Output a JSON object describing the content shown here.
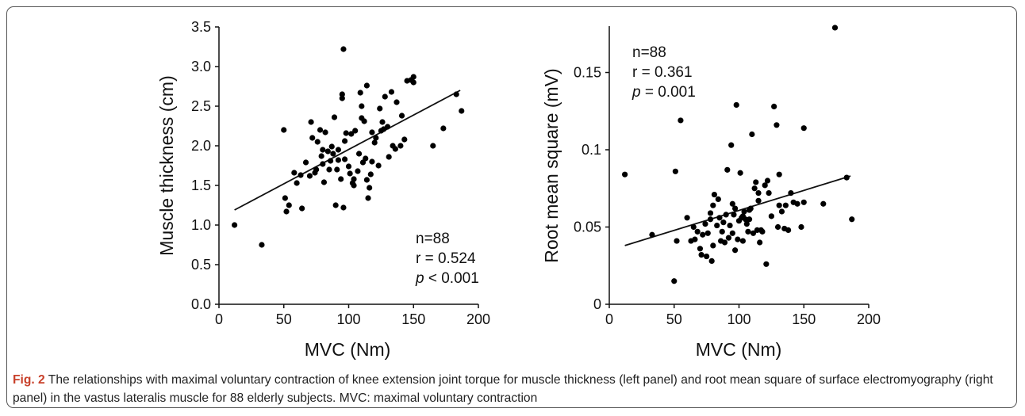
{
  "caption": {
    "label": "Fig. 2",
    "text": "The relationships with maximal voluntary contraction of knee extension joint torque for muscle thickness (left panel) and root mean square of surface electromyography (right panel) in the vastus lateralis muscle for 88 elderly subjects. MVC: maximal voluntary contraction",
    "label_color": "#c8402a"
  },
  "chart_data": [
    {
      "type": "scatter",
      "xlabel": "MVC (Nm)",
      "ylabel": "Muscle thickness (cm)",
      "xlim": [
        0,
        200
      ],
      "ylim": [
        0,
        3.5
      ],
      "xticks": [
        "0",
        "50",
        "100",
        "150",
        "200"
      ],
      "yticks": [
        "0.0",
        "0.5",
        "1.0",
        "1.5",
        "2.0",
        "2.5",
        "3.0",
        "3.5"
      ],
      "stats": {
        "n": "n=88",
        "r": "r = 0.524",
        "p_symbol": "p",
        "p_rest": " < 0.001"
      },
      "regression_line": {
        "x": [
          12,
          186
        ],
        "y": [
          1.19,
          2.7
        ]
      },
      "points": [
        [
          12,
          1.0
        ],
        [
          33,
          0.75
        ],
        [
          50,
          2.2
        ],
        [
          51,
          1.34
        ],
        [
          52,
          1.17
        ],
        [
          54,
          1.25
        ],
        [
          58,
          1.66
        ],
        [
          60,
          1.53
        ],
        [
          63,
          1.63
        ],
        [
          64,
          1.21
        ],
        [
          67,
          1.79
        ],
        [
          70,
          1.62
        ],
        [
          71,
          2.3
        ],
        [
          72,
          2.1
        ],
        [
          74,
          1.66
        ],
        [
          75,
          1.7
        ],
        [
          76,
          2.05
        ],
        [
          78,
          2.2
        ],
        [
          79,
          1.87
        ],
        [
          80,
          1.77
        ],
        [
          80,
          1.95
        ],
        [
          81,
          1.54
        ],
        [
          82,
          2.17
        ],
        [
          84,
          1.93
        ],
        [
          85,
          1.7
        ],
        [
          86,
          1.81
        ],
        [
          88,
          1.9
        ],
        [
          89,
          2.36
        ],
        [
          90,
          1.25
        ],
        [
          91,
          1.7
        ],
        [
          92,
          1.95
        ],
        [
          94,
          1.58
        ],
        [
          95,
          2.6
        ],
        [
          95,
          2.65
        ],
        [
          96,
          3.22
        ],
        [
          96,
          1.22
        ],
        [
          97,
          1.83
        ],
        [
          97,
          2.06
        ],
        [
          98,
          2.16
        ],
        [
          100,
          1.74
        ],
        [
          101,
          1.65
        ],
        [
          102,
          2.15
        ],
        [
          103,
          1.53
        ],
        [
          104,
          1.58
        ],
        [
          105,
          2.19
        ],
        [
          107,
          1.68
        ],
        [
          108,
          1.9
        ],
        [
          109,
          2.67
        ],
        [
          110,
          2.35
        ],
        [
          110,
          2.5
        ],
        [
          111,
          1.79
        ],
        [
          112,
          2.31
        ],
        [
          113,
          1.84
        ],
        [
          114,
          1.57
        ],
        [
          114,
          2.76
        ],
        [
          115,
          1.34
        ],
        [
          116,
          1.47
        ],
        [
          117,
          1.64
        ],
        [
          118,
          1.8
        ],
        [
          120,
          2.04
        ],
        [
          121,
          2.1
        ],
        [
          123,
          1.75
        ],
        [
          124,
          2.47
        ],
        [
          125,
          2.19
        ],
        [
          127,
          2.21
        ],
        [
          128,
          2.62
        ],
        [
          130,
          2.24
        ],
        [
          131,
          1.86
        ],
        [
          133,
          2.68
        ],
        [
          134,
          2.0
        ],
        [
          136,
          1.96
        ],
        [
          137,
          2.55
        ],
        [
          140,
          2.0
        ],
        [
          141,
          2.38
        ],
        [
          143,
          2.08
        ],
        [
          145,
          2.82
        ],
        [
          148,
          2.83
        ],
        [
          150,
          2.8
        ],
        [
          150,
          2.87
        ],
        [
          165,
          2.0
        ],
        [
          173,
          2.22
        ],
        [
          183,
          2.65
        ],
        [
          187,
          2.44
        ],
        [
          118,
          2.17
        ],
        [
          104,
          1.5
        ],
        [
          87,
          1.99
        ],
        [
          126,
          2.3
        ],
        [
          92,
          1.82
        ]
      ]
    },
    {
      "type": "scatter",
      "xlabel": "MVC (Nm)",
      "ylabel": "Root mean square (mV)",
      "xlim": [
        0,
        200
      ],
      "ylim": [
        0,
        0.18
      ],
      "yticks_values": [
        0,
        0.05,
        0.1,
        0.15
      ],
      "xticks": [
        "0",
        "50",
        "100",
        "150",
        "200"
      ],
      "yticks": [
        "0",
        "0.05",
        "0.1",
        "0.15"
      ],
      "stats": {
        "n": "n=88",
        "r": "r = 0.361",
        "p_symbol": "p",
        "p_rest": " = 0.001"
      },
      "regression_line": {
        "x": [
          12,
          186
        ],
        "y": [
          0.038,
          0.083
        ]
      },
      "points": [
        [
          12,
          0.084
        ],
        [
          33,
          0.045
        ],
        [
          50,
          0.015
        ],
        [
          51,
          0.086
        ],
        [
          52,
          0.041
        ],
        [
          55,
          0.119
        ],
        [
          60,
          0.056
        ],
        [
          63,
          0.041
        ],
        [
          65,
          0.05
        ],
        [
          66,
          0.042
        ],
        [
          68,
          0.047
        ],
        [
          70,
          0.036
        ],
        [
          71,
          0.032
        ],
        [
          72,
          0.045
        ],
        [
          74,
          0.052
        ],
        [
          75,
          0.031
        ],
        [
          76,
          0.046
        ],
        [
          78,
          0.055
        ],
        [
          79,
          0.028
        ],
        [
          80,
          0.038
        ],
        [
          80,
          0.064
        ],
        [
          81,
          0.071
        ],
        [
          83,
          0.051
        ],
        [
          84,
          0.068
        ],
        [
          85,
          0.056
        ],
        [
          86,
          0.041
        ],
        [
          87,
          0.047
        ],
        [
          88,
          0.053
        ],
        [
          90,
          0.058
        ],
        [
          91,
          0.087
        ],
        [
          92,
          0.043
        ],
        [
          93,
          0.051
        ],
        [
          94,
          0.103
        ],
        [
          95,
          0.046
        ],
        [
          95,
          0.065
        ],
        [
          96,
          0.058
        ],
        [
          97,
          0.035
        ],
        [
          98,
          0.129
        ],
        [
          99,
          0.042
        ],
        [
          100,
          0.054
        ],
        [
          101,
          0.085
        ],
        [
          102,
          0.056
        ],
        [
          103,
          0.041
        ],
        [
          104,
          0.06
        ],
        [
          105,
          0.055
        ],
        [
          106,
          0.052
        ],
        [
          107,
          0.047
        ],
        [
          108,
          0.061
        ],
        [
          109,
          0.062
        ],
        [
          110,
          0.11
        ],
        [
          111,
          0.046
        ],
        [
          112,
          0.075
        ],
        [
          113,
          0.079
        ],
        [
          114,
          0.048
        ],
        [
          115,
          0.067
        ],
        [
          116,
          0.04
        ],
        [
          117,
          0.048
        ],
        [
          118,
          0.047
        ],
        [
          120,
          0.077
        ],
        [
          121,
          0.026
        ],
        [
          122,
          0.08
        ],
        [
          123,
          0.072
        ],
        [
          125,
          0.057
        ],
        [
          127,
          0.128
        ],
        [
          129,
          0.116
        ],
        [
          130,
          0.05
        ],
        [
          131,
          0.084
        ],
        [
          133,
          0.06
        ],
        [
          135,
          0.049
        ],
        [
          136,
          0.064
        ],
        [
          138,
          0.048
        ],
        [
          140,
          0.072
        ],
        [
          142,
          0.066
        ],
        [
          145,
          0.065
        ],
        [
          148,
          0.05
        ],
        [
          150,
          0.114
        ],
        [
          150,
          0.066
        ],
        [
          165,
          0.065
        ],
        [
          174,
          0.179
        ],
        [
          183,
          0.082
        ],
        [
          187,
          0.055
        ],
        [
          97,
          0.062
        ],
        [
          103,
          0.057
        ],
        [
          89,
          0.04
        ],
        [
          78,
          0.059
        ],
        [
          115,
          0.072
        ],
        [
          108,
          0.055
        ],
        [
          131,
          0.064
        ]
      ]
    }
  ]
}
